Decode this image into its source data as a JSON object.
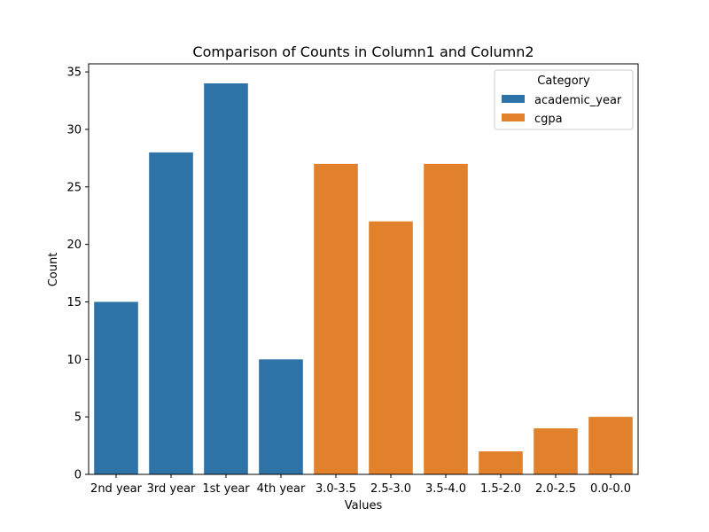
{
  "chart_data": {
    "type": "bar",
    "title": "Comparison of Counts in Column1 and Column2",
    "xlabel": "Values",
    "ylabel": "Count",
    "ylim": [
      0,
      35.7
    ],
    "yticks": [
      0,
      5,
      10,
      15,
      20,
      25,
      30,
      35
    ],
    "categories": [
      "2nd year",
      "3rd year",
      "1st year",
      "4th year",
      "3.0-3.5",
      "2.5-3.0",
      "3.5-4.0",
      "1.5-2.0",
      "2.0-2.5",
      "0.0-0.0"
    ],
    "values": [
      15,
      28,
      34,
      10,
      27,
      22,
      27,
      2,
      4,
      5
    ],
    "bar_series": [
      "academic_year",
      "academic_year",
      "academic_year",
      "academic_year",
      "cgpa",
      "cgpa",
      "cgpa",
      "cgpa",
      "cgpa",
      "cgpa"
    ],
    "series": [
      {
        "name": "academic_year",
        "color": "#2e73a8"
      },
      {
        "name": "cgpa",
        "color": "#e1812c"
      }
    ],
    "legend": {
      "title": "Category",
      "placement": "top-right"
    },
    "grid": false
  }
}
